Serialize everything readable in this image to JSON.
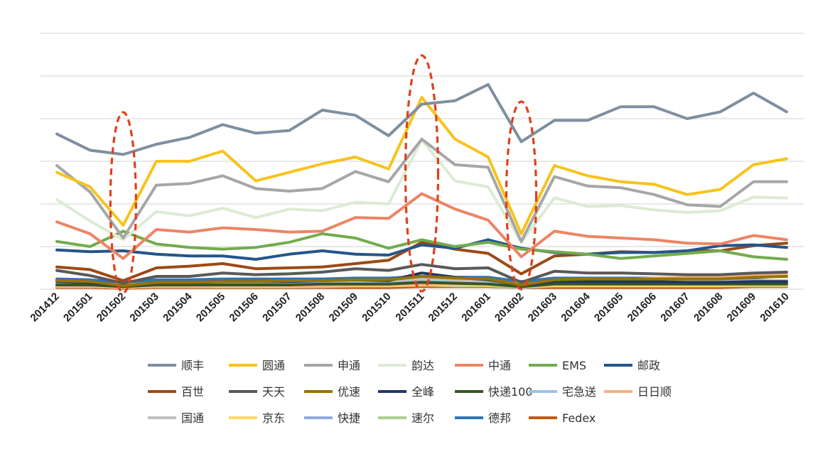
{
  "chart_data": {
    "type": "line",
    "title": "",
    "xlabel": "",
    "ylabel": "",
    "ylim": [
      0,
      300
    ],
    "gridlines": [
      0,
      50,
      100,
      150,
      200,
      250,
      300
    ],
    "y_ticks_labeled": false,
    "legend_position": "bottom",
    "categories": [
      "201412",
      "201501",
      "201502",
      "201503",
      "201504",
      "201505",
      "201506",
      "201507",
      "201508",
      "201509",
      "201510",
      "201511",
      "201512",
      "201601",
      "201602",
      "201603",
      "201604",
      "201605",
      "201606",
      "201607",
      "201608",
      "201609",
      "201610"
    ],
    "highlighted_categories": [
      "201502",
      "201511",
      "201602"
    ],
    "series": [
      {
        "name": "顺丰",
        "color": "#7f8fa0",
        "values": [
          182,
          163,
          158,
          170,
          178,
          193,
          183,
          186,
          210,
          204,
          180,
          217,
          221,
          240,
          173,
          198,
          198,
          214,
          214,
          200,
          208,
          230,
          208
        ]
      },
      {
        "name": "圆通",
        "color": "#f7c31c",
        "values": [
          137,
          120,
          75,
          150,
          150,
          162,
          127,
          137,
          147,
          155,
          141,
          225,
          176,
          155,
          65,
          145,
          133,
          126,
          123,
          111,
          117,
          146,
          153
        ]
      },
      {
        "name": "申通",
        "color": "#a6a6a6",
        "values": [
          145,
          114,
          60,
          122,
          124,
          133,
          118,
          115,
          118,
          138,
          126,
          176,
          146,
          143,
          56,
          132,
          121,
          119,
          111,
          99,
          97,
          126,
          126
        ]
      },
      {
        "name": "韵达",
        "color": "#dcebd4",
        "values": [
          105,
          80,
          58,
          91,
          86,
          95,
          84,
          94,
          92,
          102,
          100,
          175,
          127,
          120,
          55,
          107,
          97,
          98,
          93,
          90,
          92,
          108,
          107
        ]
      },
      {
        "name": "中通",
        "color": "#ec8565",
        "values": [
          79,
          65,
          36,
          70,
          67,
          72,
          70,
          67,
          68,
          84,
          83,
          112,
          94,
          81,
          38,
          68,
          62,
          60,
          58,
          54,
          53,
          63,
          58
        ]
      },
      {
        "name": "EMS",
        "color": "#72ac4d",
        "values": [
          56,
          50,
          68,
          53,
          49,
          47,
          49,
          55,
          65,
          60,
          48,
          58,
          50,
          55,
          47,
          44,
          41,
          36,
          39,
          42,
          45,
          38,
          35
        ]
      },
      {
        "name": "邮政",
        "color": "#24558a",
        "values": [
          46,
          44,
          45,
          41,
          39,
          39,
          35,
          41,
          45,
          41,
          40,
          52,
          48,
          58,
          48,
          43,
          41,
          43,
          43,
          45,
          51,
          52,
          49
        ]
      },
      {
        "name": "百世",
        "color": "#9c4a16",
        "values": [
          26,
          23,
          10,
          25,
          27,
          30,
          24,
          25,
          26,
          30,
          34,
          55,
          47,
          42,
          18,
          39,
          41,
          44,
          43,
          45,
          45,
          51,
          54
        ]
      },
      {
        "name": "天天",
        "color": "#595959",
        "values": [
          22,
          16,
          7,
          15,
          15,
          19,
          17,
          18,
          20,
          24,
          22,
          29,
          24,
          25,
          8,
          21,
          19,
          19,
          18,
          17,
          17,
          19,
          20
        ]
      },
      {
        "name": "优速",
        "color": "#997300",
        "values": [
          10,
          9,
          4,
          8,
          8,
          9,
          9,
          10,
          10,
          11,
          11,
          15,
          13,
          12,
          5,
          11,
          12,
          12,
          12,
          12,
          12,
          14,
          15
        ]
      },
      {
        "name": "全峰",
        "color": "#203864",
        "values": [
          9,
          8,
          4,
          8,
          8,
          9,
          9,
          9,
          10,
          11,
          10,
          19,
          14,
          11,
          5,
          9,
          9,
          9,
          9,
          8,
          8,
          9,
          9
        ]
      },
      {
        "name": "快递100",
        "color": "#375623",
        "values": [
          5,
          5,
          3,
          5,
          5,
          5,
          5,
          5,
          6,
          6,
          6,
          8,
          7,
          6,
          3,
          6,
          6,
          6,
          6,
          6,
          6,
          6,
          6
        ]
      },
      {
        "name": "宅急送",
        "color": "#9dc3e6",
        "values": [
          6,
          6,
          3,
          5,
          5,
          6,
          6,
          6,
          6,
          7,
          7,
          9,
          8,
          7,
          4,
          7,
          7,
          6,
          6,
          6,
          6,
          7,
          7
        ]
      },
      {
        "name": "日日顺",
        "color": "#f4b183",
        "values": [
          3,
          3,
          2,
          3,
          3,
          4,
          4,
          4,
          4,
          5,
          5,
          6,
          6,
          6,
          3,
          7,
          9,
          11,
          13,
          14,
          15,
          16,
          17
        ]
      },
      {
        "name": "国通",
        "color": "#bfbfbf",
        "values": [
          8,
          7,
          3,
          7,
          7,
          8,
          8,
          8,
          8,
          9,
          9,
          12,
          10,
          9,
          4,
          9,
          9,
          9,
          9,
          9,
          9,
          10,
          10
        ]
      },
      {
        "name": "京东",
        "color": "#ffd966",
        "values": [
          3,
          3,
          2,
          3,
          3,
          3,
          3,
          3,
          4,
          4,
          4,
          5,
          5,
          5,
          3,
          4,
          4,
          4,
          4,
          4,
          4,
          5,
          5
        ]
      },
      {
        "name": "快捷",
        "color": "#8faadc",
        "values": [
          4,
          4,
          2,
          4,
          4,
          4,
          4,
          4,
          4,
          5,
          5,
          6,
          5,
          5,
          2,
          5,
          5,
          5,
          5,
          5,
          5,
          5,
          5
        ]
      },
      {
        "name": "速尔",
        "color": "#a9d18e",
        "values": [
          3,
          3,
          2,
          3,
          3,
          3,
          3,
          3,
          3,
          4,
          4,
          5,
          4,
          4,
          2,
          4,
          4,
          4,
          4,
          4,
          4,
          4,
          4
        ]
      },
      {
        "name": "德邦",
        "color": "#2e75b6",
        "values": [
          12,
          11,
          8,
          11,
          11,
          12,
          12,
          12,
          12,
          13,
          13,
          15,
          14,
          14,
          9,
          13,
          13,
          13,
          13,
          13,
          12,
          11,
          9
        ]
      },
      {
        "name": "Fedex",
        "color": "#c55a11",
        "values": [
          2,
          2,
          1,
          2,
          2,
          2,
          2,
          2,
          2,
          2,
          2,
          3,
          3,
          3,
          2,
          2,
          2,
          2,
          2,
          2,
          2,
          3,
          3
        ]
      }
    ]
  }
}
